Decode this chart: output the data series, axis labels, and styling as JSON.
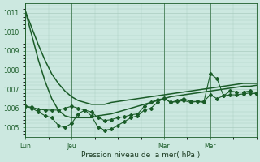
{
  "bg_color": "#cce8e0",
  "grid_color": "#aaccbf",
  "line_color": "#1a5c28",
  "ylabel": "Pression niveau de la mer( hPa )",
  "ylim": [
    1004.5,
    1011.5
  ],
  "yticks": [
    1005,
    1006,
    1007,
    1008,
    1009,
    1010,
    1011
  ],
  "x_day_labels": [
    [
      "Lun",
      0
    ],
    [
      "Jeu",
      7
    ],
    [
      "Mar",
      21
    ],
    [
      "Mer",
      28
    ]
  ],
  "x_vlines": [
    0,
    7,
    21,
    28
  ],
  "xlim": [
    0,
    35
  ],
  "smooth1": [
    1011.1,
    1010.2,
    1009.3,
    1008.5,
    1007.8,
    1007.3,
    1006.9,
    1006.6,
    1006.4,
    1006.3,
    1006.2,
    1006.2,
    1006.2,
    1006.3,
    1006.35,
    1006.4,
    1006.45,
    1006.5,
    1006.55,
    1006.6,
    1006.65,
    1006.7,
    1006.75,
    1006.8,
    1006.85,
    1006.9,
    1006.95,
    1007.0,
    1007.05,
    1007.1,
    1007.15,
    1007.2,
    1007.25,
    1007.3,
    1007.3,
    1007.3
  ],
  "smooth2": [
    1011.1,
    1009.8,
    1008.5,
    1007.4,
    1006.5,
    1005.9,
    1005.6,
    1005.5,
    1005.5,
    1005.5,
    1005.5,
    1005.6,
    1005.65,
    1005.7,
    1005.8,
    1005.9,
    1006.0,
    1006.1,
    1006.2,
    1006.3,
    1006.4,
    1006.5,
    1006.6,
    1006.65,
    1006.7,
    1006.75,
    1006.8,
    1006.85,
    1006.9,
    1006.95,
    1007.0,
    1007.05,
    1007.1,
    1007.15,
    1007.15,
    1007.2
  ],
  "jagged1": [
    1006.1,
    1006.05,
    1005.95,
    1005.9,
    1005.9,
    1005.9,
    1006.0,
    1006.1,
    1006.0,
    1005.9,
    1005.8,
    1005.5,
    1005.35,
    1005.4,
    1005.5,
    1005.55,
    1005.65,
    1005.7,
    1006.1,
    1006.3,
    1006.45,
    1006.5,
    1006.3,
    1006.35,
    1006.4,
    1006.3,
    1006.35,
    1006.35,
    1006.7,
    1006.5,
    1006.65,
    1006.7,
    1006.7,
    1006.75,
    1006.8,
    1006.75
  ],
  "jagged2": [
    1006.1,
    1006.0,
    1005.8,
    1005.6,
    1005.5,
    1005.1,
    1005.0,
    1005.2,
    1005.7,
    1005.9,
    1005.6,
    1005.0,
    1004.85,
    1004.9,
    1005.1,
    1005.3,
    1005.5,
    1005.6,
    1005.9,
    1006.0,
    1006.3,
    1006.55,
    1006.3,
    1006.4,
    1006.5,
    1006.35,
    1006.35,
    1006.3,
    1007.8,
    1007.55,
    1006.65,
    1006.9,
    1006.85,
    1006.85,
    1006.9,
    1006.8
  ]
}
